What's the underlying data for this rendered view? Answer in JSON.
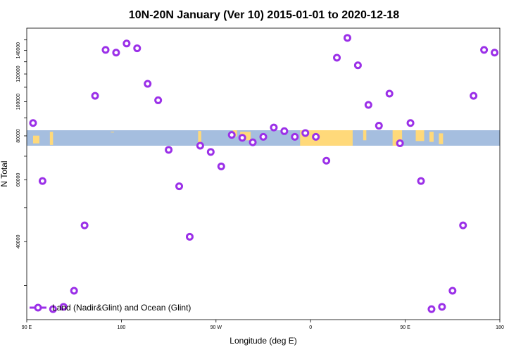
{
  "chart_data": {
    "type": "scatter",
    "title": "10N-20N January (Ver 10)   2015-01-01 to 2020-12-18",
    "xlabel": "Longitude (deg E)",
    "ylabel": "N Total",
    "x_ticks": [
      {
        "value": 90,
        "label": "90 E"
      },
      {
        "value": 180,
        "label": "180"
      },
      {
        "value": 270,
        "label": "90 W"
      },
      {
        "value": 360,
        "label": "0"
      },
      {
        "value": 450,
        "label": "90 E"
      },
      {
        "value": 540,
        "label": "180"
      }
    ],
    "y_ticks": [
      {
        "value": 40000,
        "label": "40000"
      },
      {
        "value": 60000,
        "label": "60000"
      },
      {
        "value": 80000,
        "label": "80000"
      },
      {
        "value": 100000,
        "label": "100000"
      },
      {
        "value": 120000,
        "label": "120000"
      },
      {
        "value": 140000,
        "label": "140000"
      }
    ],
    "xlim": [
      90,
      540
    ],
    "ylim": [
      24000,
      162000
    ],
    "y_scale": "log",
    "series": [
      {
        "name": "Land (Nadir&Glint) and Ocean (Glint)",
        "color": "#9b30e8",
        "x": [
          96,
          105,
          115,
          125,
          135,
          145,
          155,
          165,
          175,
          185,
          195,
          205,
          215,
          225,
          235,
          245,
          255,
          265,
          275,
          285,
          295,
          305,
          315,
          325,
          335,
          345,
          355,
          365,
          375,
          385,
          395,
          405,
          415,
          425,
          435,
          445,
          455,
          465,
          475,
          485,
          495,
          505,
          515,
          525,
          535
        ],
        "y": [
          87000,
          59500,
          25700,
          26100,
          29000,
          44500,
          104000,
          140500,
          138000,
          146500,
          142000,
          112500,
          101000,
          73000,
          57500,
          41300,
          75000,
          72000,
          65500,
          80500,
          79000,
          76700,
          79500,
          84500,
          82500,
          79500,
          81500,
          79500,
          68000,
          133500,
          152000,
          127000,
          98000,
          85500,
          105500,
          76200,
          87000,
          59500,
          25700,
          26100,
          29000,
          44500,
          104000,
          140500,
          138000
        ]
      }
    ],
    "legend": {
      "position": "bottom-left"
    },
    "map_band": {
      "y_range": [
        75000,
        83000
      ],
      "ocean_color": "#a5bedf",
      "land_color": "#ffd97a"
    }
  }
}
